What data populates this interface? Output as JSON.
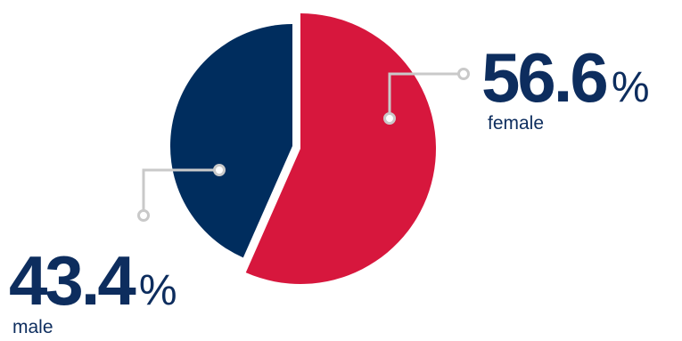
{
  "chart_data": {
    "type": "pie",
    "slices": [
      {
        "label": "female",
        "value": 56.6,
        "value_text": "56.6",
        "unit": "%",
        "color": "#d7173d"
      },
      {
        "label": "male",
        "value": 43.4,
        "value_text": "43.4",
        "unit": "%",
        "color": "#002d5e"
      }
    ],
    "leader_line_color": "#c9c9c9",
    "text_color": "#0d2d5e",
    "background": "#ffffff"
  }
}
